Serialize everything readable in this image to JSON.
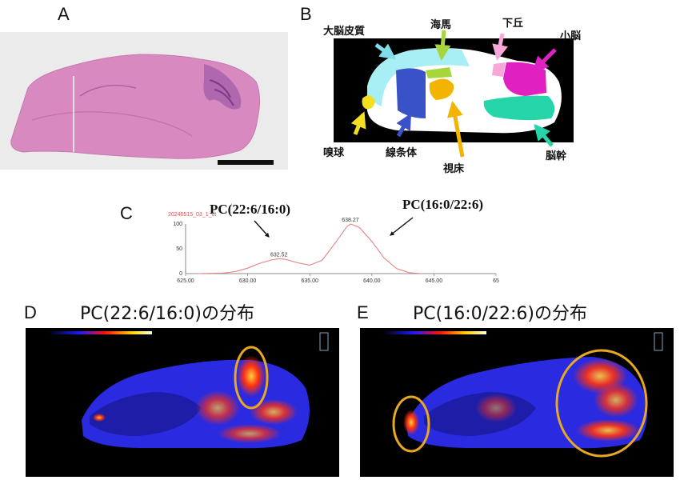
{
  "panels": {
    "A": {
      "letter": "A"
    },
    "B": {
      "letter": "B",
      "regions": {
        "cortex": "大脳皮質",
        "hippocampus": "海馬",
        "inferior_colliculus": "下丘",
        "cerebellum": "小脳",
        "olfactory_bulb": "嗅球",
        "striatum": "線条体",
        "thalamus": "視床",
        "brainstem": "脳幹"
      },
      "colors": {
        "cortex": "#a8eef5",
        "hippocampus": "#a6d63b",
        "inferior_colliculus": "#f7a8d8",
        "cerebellum": "#e020c0",
        "olfactory_bulb": "#f2e020",
        "striatum": "#3a52c8",
        "thalamus": "#f2b400",
        "brainstem": "#25d4a8"
      }
    },
    "C": {
      "letter": "C",
      "label_left": "PC(22:6/16:0)",
      "label_right": "PC(16:0/22:6)",
      "file_label": "20240515_03_1_dt"
    },
    "D": {
      "letter": "D",
      "title": "PC(22:6/16:0)の分布"
    },
    "E": {
      "letter": "E",
      "title": "PC(16:0/22:6)の分布"
    }
  },
  "chart_data": {
    "type": "line",
    "title": "",
    "xlabel": "",
    "ylabel": "",
    "xlim": [
      625,
      650
    ],
    "ylim": [
      0,
      100
    ],
    "x_ticks": [
      "625.00",
      "630.00",
      "635.00",
      "640.00",
      "645.00",
      "65"
    ],
    "y_ticks": [
      "100",
      "50",
      "0"
    ],
    "peaks": [
      {
        "x": 632.52,
        "label": "632.52",
        "height": 30
      },
      {
        "x": 638.27,
        "label": "638.27",
        "height": 100
      }
    ],
    "series": [
      {
        "color": "#e88080",
        "x": [
          626,
          628,
          629,
          630,
          631,
          632,
          632.5,
          633,
          634,
          635,
          636,
          637,
          638,
          638.3,
          639,
          640,
          641,
          642,
          643,
          644
        ],
        "y": [
          0,
          1,
          4,
          11,
          21,
          28,
          30,
          29,
          22,
          17,
          27,
          60,
          95,
          100,
          93,
          65,
          31,
          10,
          2,
          0
        ]
      }
    ]
  }
}
